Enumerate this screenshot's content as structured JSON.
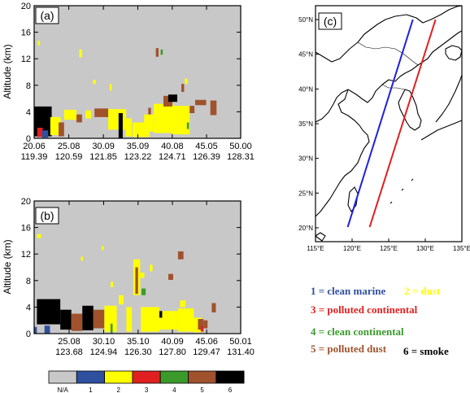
{
  "colors": {
    "na": "#c8c8c8",
    "clean_marine": "#2f4f9f",
    "dust": "#ffff00",
    "polluted_continental": "#e02020",
    "clean_continental": "#3a9a2a",
    "polluted_dust": "#a0522d",
    "smoke": "#000000",
    "track_blue": "#2020e0",
    "track_red": "#e02020"
  },
  "chart_data": [
    {
      "type": "heatmap",
      "panel_label": "(a)",
      "ylabel": "Altitude (km)",
      "ylim": [
        0,
        20
      ],
      "y_ticks": [
        0,
        4,
        8,
        12,
        16,
        20
      ],
      "x_tick_labels": [
        {
          "lat": "20.06",
          "lon": "119.39"
        },
        {
          "lat": "25.08",
          "lon": "120.59"
        },
        {
          "lat": "30.09",
          "lon": "121.85"
        },
        {
          "lat": "35.09",
          "lon": "123.22"
        },
        {
          "lat": "40.08",
          "lon": "124.71"
        },
        {
          "lat": "45.05",
          "lon": "126.39"
        },
        {
          "lat": "50.00",
          "lon": "128.31"
        }
      ],
      "xlim": [
        20.06,
        50.0
      ],
      "cells": [
        {
          "x0": 20.06,
          "x1": 22.6,
          "y0": 0.3,
          "y1": 4.8,
          "cls": "smoke"
        },
        {
          "x0": 20.5,
          "x1": 21.3,
          "y0": 0.2,
          "y1": 1.6,
          "cls": "polluted_continental"
        },
        {
          "x0": 21.2,
          "x1": 22.1,
          "y0": 0.1,
          "y1": 1.2,
          "cls": "clean_marine"
        },
        {
          "x0": 22.4,
          "x1": 23.9,
          "y0": 0.5,
          "y1": 3.2,
          "cls": "dust"
        },
        {
          "x0": 23.6,
          "x1": 24.4,
          "y0": 0.3,
          "y1": 2.4,
          "cls": "polluted_dust"
        },
        {
          "x0": 24.4,
          "x1": 26.2,
          "y0": 2.8,
          "y1": 4.3,
          "cls": "dust"
        },
        {
          "x0": 26.2,
          "x1": 27.0,
          "y0": 2.4,
          "y1": 3.6,
          "cls": "polluted_dust"
        },
        {
          "x0": 27.5,
          "x1": 28.3,
          "y0": 3.0,
          "y1": 4.2,
          "cls": "dust"
        },
        {
          "x0": 28.8,
          "x1": 30.8,
          "y0": 3.2,
          "y1": 4.5,
          "cls": "polluted_dust"
        },
        {
          "x0": 30.8,
          "x1": 33.4,
          "y0": 1.3,
          "y1": 4.4,
          "cls": "dust"
        },
        {
          "x0": 32.3,
          "x1": 32.9,
          "y0": 0.0,
          "y1": 3.8,
          "cls": "smoke"
        },
        {
          "x0": 33.3,
          "x1": 34.2,
          "y0": 0.3,
          "y1": 3.0,
          "cls": "dust"
        },
        {
          "x0": 34.3,
          "x1": 36.8,
          "y0": 0.2,
          "y1": 2.4,
          "cls": "dust"
        },
        {
          "x0": 36.0,
          "x1": 37.4,
          "y0": 1.0,
          "y1": 3.6,
          "cls": "dust"
        },
        {
          "x0": 37.4,
          "x1": 40.2,
          "y0": 0.8,
          "y1": 5.2,
          "cls": "dust"
        },
        {
          "x0": 36.6,
          "x1": 37.0,
          "y0": 3.6,
          "y1": 4.6,
          "cls": "polluted_dust"
        },
        {
          "x0": 38.8,
          "x1": 40.1,
          "y0": 4.8,
          "y1": 6.4,
          "cls": "polluted_dust"
        },
        {
          "x0": 39.5,
          "x1": 40.8,
          "y0": 5.5,
          "y1": 6.6,
          "cls": "smoke"
        },
        {
          "x0": 40.1,
          "x1": 42.6,
          "y0": 0.6,
          "y1": 4.9,
          "cls": "dust"
        },
        {
          "x0": 42.2,
          "x1": 42.5,
          "y0": 1.4,
          "y1": 2.4,
          "cls": "clean_continental"
        },
        {
          "x0": 42.6,
          "x1": 43.3,
          "y0": 3.8,
          "y1": 4.9,
          "cls": "polluted_dust"
        },
        {
          "x0": 43.4,
          "x1": 45.0,
          "y0": 5.0,
          "y1": 5.8,
          "cls": "polluted_dust"
        },
        {
          "x0": 45.6,
          "x1": 46.5,
          "y0": 3.5,
          "y1": 5.7,
          "cls": "polluted_dust"
        },
        {
          "x0": 41.4,
          "x1": 41.8,
          "y0": 7.0,
          "y1": 8.2,
          "cls": "polluted_dust"
        },
        {
          "x0": 28.6,
          "x1": 29.0,
          "y0": 8.2,
          "y1": 8.8,
          "cls": "dust"
        },
        {
          "x0": 31.0,
          "x1": 31.3,
          "y0": 7.2,
          "y1": 8.2,
          "cls": "dust"
        },
        {
          "x0": 41.9,
          "x1": 42.3,
          "y0": 8.2,
          "y1": 9.0,
          "cls": "dust"
        },
        {
          "x0": 26.6,
          "x1": 27.0,
          "y0": 12.2,
          "y1": 13.4,
          "cls": "dust"
        },
        {
          "x0": 37.7,
          "x1": 38.1,
          "y0": 12.3,
          "y1": 13.6,
          "cls": "polluted_dust"
        },
        {
          "x0": 38.4,
          "x1": 38.7,
          "y0": 12.6,
          "y1": 13.4,
          "cls": "clean_continental"
        },
        {
          "x0": 20.6,
          "x1": 20.9,
          "y0": 14.0,
          "y1": 14.7,
          "cls": "dust"
        }
      ]
    },
    {
      "type": "heatmap",
      "panel_label": "(b)",
      "ylabel": "Altitude (km)",
      "ylim": [
        0,
        20
      ],
      "y_ticks": [
        0,
        4,
        8,
        12,
        16,
        20
      ],
      "x_tick_labels": [
        {
          "lat": "25.08",
          "lon": "123.68"
        },
        {
          "lat": "30.10",
          "lon": "124.94"
        },
        {
          "lat": "35.10",
          "lon": "126.30"
        },
        {
          "lat": "40.09",
          "lon": "127.80"
        },
        {
          "lat": "45.06",
          "lon": "129.47"
        },
        {
          "lat": "50.01",
          "lon": "131.40"
        }
      ],
      "xlim": [
        20.0,
        50.01
      ],
      "cells": [
        {
          "x0": 20.0,
          "x1": 20.4,
          "y0": 0.0,
          "y1": 1.0,
          "cls": "clean_marine"
        },
        {
          "x0": 20.4,
          "x1": 23.8,
          "y0": 1.4,
          "y1": 5.2,
          "cls": "smoke"
        },
        {
          "x0": 21.5,
          "x1": 22.3,
          "y0": 0.0,
          "y1": 1.2,
          "cls": "clean_marine"
        },
        {
          "x0": 23.8,
          "x1": 25.4,
          "y0": 0.6,
          "y1": 3.6,
          "cls": "smoke"
        },
        {
          "x0": 25.4,
          "x1": 27.0,
          "y0": 0.4,
          "y1": 3.0,
          "cls": "polluted_dust"
        },
        {
          "x0": 27.0,
          "x1": 28.6,
          "y0": 0.5,
          "y1": 4.2,
          "cls": "smoke"
        },
        {
          "x0": 28.6,
          "x1": 30.2,
          "y0": 0.8,
          "y1": 3.6,
          "cls": "polluted_dust"
        },
        {
          "x0": 30.2,
          "x1": 32.0,
          "y0": 0.3,
          "y1": 4.2,
          "cls": "dust"
        },
        {
          "x0": 31.1,
          "x1": 31.4,
          "y0": 0.0,
          "y1": 1.5,
          "cls": "clean_continental"
        },
        {
          "x0": 32.3,
          "x1": 33.0,
          "y0": 4.4,
          "y1": 5.8,
          "cls": "dust"
        },
        {
          "x0": 33.4,
          "x1": 34.2,
          "y0": 0.3,
          "y1": 4.0,
          "cls": "dust"
        },
        {
          "x0": 34.4,
          "x1": 35.4,
          "y0": 5.8,
          "y1": 11.2,
          "cls": "dust"
        },
        {
          "x0": 34.7,
          "x1": 35.1,
          "y0": 6.0,
          "y1": 10.0,
          "cls": "polluted_dust"
        },
        {
          "x0": 35.4,
          "x1": 36.0,
          "y0": 8.4,
          "y1": 9.2,
          "cls": "dust"
        },
        {
          "x0": 35.6,
          "x1": 36.2,
          "y0": 5.8,
          "y1": 6.8,
          "cls": "clean_continental"
        },
        {
          "x0": 35.5,
          "x1": 38.2,
          "y0": 0.3,
          "y1": 4.0,
          "cls": "dust"
        },
        {
          "x0": 38.2,
          "x1": 40.9,
          "y0": 0.6,
          "y1": 3.4,
          "cls": "dust"
        },
        {
          "x0": 38.2,
          "x1": 38.6,
          "y0": 2.4,
          "y1": 3.4,
          "cls": "smoke"
        },
        {
          "x0": 40.9,
          "x1": 43.2,
          "y0": 0.3,
          "y1": 3.8,
          "cls": "dust"
        },
        {
          "x0": 41.2,
          "x1": 42.0,
          "y0": 4.0,
          "y1": 5.0,
          "cls": "dust"
        },
        {
          "x0": 43.2,
          "x1": 44.4,
          "y0": 0.2,
          "y1": 2.4,
          "cls": "dust"
        },
        {
          "x0": 43.8,
          "x1": 44.6,
          "y0": 0.6,
          "y1": 2.2,
          "cls": "polluted_dust"
        },
        {
          "x0": 44.2,
          "x1": 44.6,
          "y0": 0.3,
          "y1": 1.1,
          "cls": "polluted_continental"
        },
        {
          "x0": 44.6,
          "x1": 45.2,
          "y0": 0.8,
          "y1": 2.0,
          "cls": "polluted_dust"
        },
        {
          "x0": 45.8,
          "x1": 46.4,
          "y0": 3.2,
          "y1": 4.6,
          "cls": "polluted_dust"
        },
        {
          "x0": 40.9,
          "x1": 41.7,
          "y0": 11.2,
          "y1": 12.4,
          "cls": "polluted_dust"
        },
        {
          "x0": 39.5,
          "x1": 40.2,
          "y0": 8.1,
          "y1": 9.0,
          "cls": "polluted_dust"
        },
        {
          "x0": 36.8,
          "x1": 37.2,
          "y0": 9.4,
          "y1": 10.4,
          "cls": "dust"
        },
        {
          "x0": 31.1,
          "x1": 31.5,
          "y0": 7.0,
          "y1": 7.8,
          "cls": "dust"
        },
        {
          "x0": 26.8,
          "x1": 27.1,
          "y0": 11.0,
          "y1": 11.6,
          "cls": "dust"
        },
        {
          "x0": 29.8,
          "x1": 30.1,
          "y0": 12.6,
          "y1": 13.2,
          "cls": "dust"
        },
        {
          "x0": 20.4,
          "x1": 21.0,
          "y0": 14.4,
          "y1": 15.0,
          "cls": "dust"
        }
      ]
    },
    {
      "type": "map",
      "panel_label": "(c)",
      "lon_ticks": [
        "115°E",
        "120°E",
        "125°E",
        "130°E",
        "135°E"
      ],
      "lat_ticks": [
        "20°N",
        "25°N",
        "30°N",
        "35°N",
        "40°N",
        "45°N",
        "50°N"
      ],
      "lon_range": [
        115,
        135
      ],
      "lat_range": [
        18,
        52
      ],
      "tracks": [
        {
          "color_key": "track_blue",
          "points": [
            [
              119.4,
              20.1
            ],
            [
              128.3,
              50.0
            ]
          ]
        },
        {
          "color_key": "track_red",
          "points": [
            [
              122.4,
              20.1
            ],
            [
              131.4,
              50.0
            ]
          ]
        }
      ]
    }
  ],
  "colorbar": {
    "labels": [
      "N/A",
      "1",
      "2",
      "3",
      "4",
      "5",
      "6"
    ]
  },
  "legend": [
    {
      "text": "1 = clean marine",
      "color_key": "clean_marine"
    },
    {
      "text": "2 = dust",
      "color_key": "dust"
    },
    {
      "text": "3 = polluted continental",
      "color_key": "polluted_continental"
    },
    {
      "text": "4 = clean continental",
      "color_key": "clean_continental"
    },
    {
      "text": "5 = polluted dust",
      "color_key": "polluted_dust"
    },
    {
      "text": "6 = smoke",
      "color_key": "smoke"
    }
  ]
}
